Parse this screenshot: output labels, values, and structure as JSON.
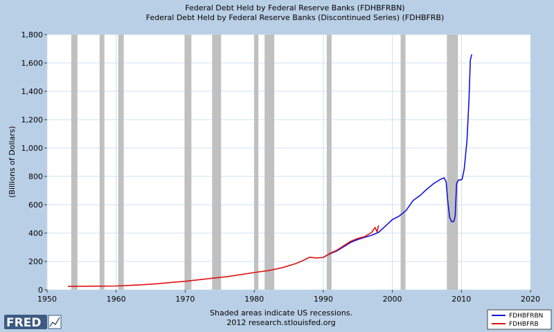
{
  "title_line1": "Federal Debt Held by Federal Reserve Banks (FDHBFRBN)",
  "title_line2": "Federal Debt Held by Federal Reserve Banks (Discontinued Series) (FDHBFRB)",
  "footer_line1": "Shaded areas indicate US recessions.",
  "footer_line2": "2012 research.stlouisfed.org",
  "logo_text": "FRED",
  "colors": {
    "background": "#b9cfe6",
    "plot": "#ffffff",
    "grid": "#cfe0ef",
    "recession": "#c0c0c0",
    "series_blue": "#1010dd",
    "series_red": "#dd1010"
  },
  "chart_data": {
    "type": "line",
    "ylabel": "(Billions of Dollars)",
    "xlabel": "",
    "xlim": [
      1950,
      2020
    ],
    "ylim": [
      0,
      1800
    ],
    "x_ticks": [
      "1950",
      "1960",
      "1970",
      "1980",
      "1990",
      "2000",
      "2010",
      "2020"
    ],
    "y_ticks": [
      "0",
      "200",
      "400",
      "600",
      "800",
      "1,000",
      "1,200",
      "1,400",
      "1,600",
      "1,800"
    ],
    "grid": true,
    "legend_placement": "bottom-right",
    "recessions": [
      [
        1953.5,
        1954.4
      ],
      [
        1957.6,
        1958.3
      ],
      [
        1960.3,
        1961.1
      ],
      [
        1969.9,
        1970.9
      ],
      [
        1973.9,
        1975.2
      ],
      [
        1980.0,
        1980.6
      ],
      [
        1981.5,
        1982.9
      ],
      [
        1990.5,
        1991.2
      ],
      [
        2001.2,
        2001.9
      ],
      [
        2007.9,
        2009.5
      ]
    ],
    "series": [
      {
        "name": "FDHBFRBN",
        "color": "#1010dd",
        "points": [
          [
            1990,
            230
          ],
          [
            1991,
            255
          ],
          [
            1992,
            275
          ],
          [
            1993,
            305
          ],
          [
            1994,
            335
          ],
          [
            1995,
            355
          ],
          [
            1996,
            370
          ],
          [
            1997,
            385
          ],
          [
            1998,
            405
          ],
          [
            1999,
            450
          ],
          [
            2000,
            495
          ],
          [
            2001,
            520
          ],
          [
            2002,
            560
          ],
          [
            2003,
            630
          ],
          [
            2004,
            665
          ],
          [
            2005,
            710
          ],
          [
            2006,
            750
          ],
          [
            2007,
            780
          ],
          [
            2007.5,
            790
          ],
          [
            2007.8,
            760
          ],
          [
            2008.0,
            640
          ],
          [
            2008.3,
            510
          ],
          [
            2008.6,
            480
          ],
          [
            2008.9,
            482
          ],
          [
            2009.1,
            520
          ],
          [
            2009.3,
            750
          ],
          [
            2009.6,
            775
          ],
          [
            2009.9,
            775
          ],
          [
            2010.1,
            780
          ],
          [
            2010.4,
            850
          ],
          [
            2010.8,
            1050
          ],
          [
            2011.1,
            1350
          ],
          [
            2011.3,
            1620
          ],
          [
            2011.5,
            1660
          ]
        ]
      },
      {
        "name": "FDHBFRB",
        "color": "#dd1010",
        "points": [
          [
            1953,
            25
          ],
          [
            1955,
            25
          ],
          [
            1958,
            26
          ],
          [
            1960,
            27
          ],
          [
            1962,
            31
          ],
          [
            1964,
            36
          ],
          [
            1966,
            43
          ],
          [
            1968,
            52
          ],
          [
            1970,
            60
          ],
          [
            1972,
            71
          ],
          [
            1974,
            82
          ],
          [
            1976,
            92
          ],
          [
            1978,
            107
          ],
          [
            1980,
            122
          ],
          [
            1982,
            135
          ],
          [
            1984,
            155
          ],
          [
            1986,
            185
          ],
          [
            1987,
            205
          ],
          [
            1988,
            230
          ],
          [
            1989,
            225
          ],
          [
            1990,
            228
          ],
          [
            1991,
            258
          ],
          [
            1992,
            280
          ],
          [
            1993,
            312
          ],
          [
            1994,
            343
          ],
          [
            1995,
            362
          ],
          [
            1996,
            375
          ],
          [
            1997,
            405
          ],
          [
            1997.5,
            440
          ],
          [
            1997.8,
            408
          ],
          [
            1998.0,
            455
          ]
        ]
      }
    ]
  }
}
